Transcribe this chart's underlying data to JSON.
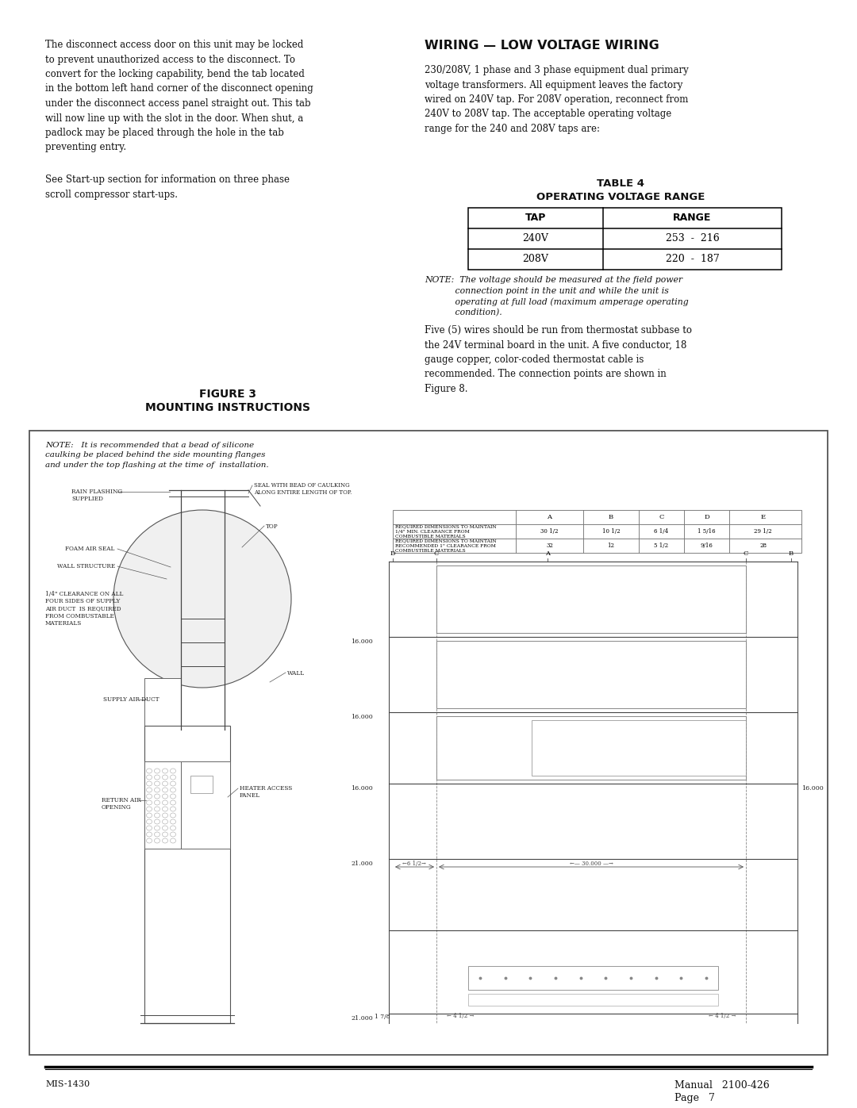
{
  "page_bg": "#ffffff",
  "title_wiring": "WIRING — LOW VOLTAGE WIRING",
  "left_para1": "The disconnect access door on this unit may be locked\nto prevent unauthorized access to the disconnect. To\nconvert for the locking capability, bend the tab located\nin the bottom left hand corner of the disconnect opening\nunder the disconnect access panel straight out. This tab\nwill now line up with the slot in the door. When shut, a\npadlock may be placed through the hole in the tab\npreventing entry.",
  "left_para2": "See Start-up section for information on three phase\nscroll compressor start-ups.",
  "right_para1": "230/208V, 1 phase and 3 phase equipment dual primary\nvoltage transformers. All equipment leaves the factory\nwired on 240V tap. For 208V operation, reconnect from\n240V to 208V tap. The acceptable operating voltage\nrange for the 240 and 208V taps are:",
  "table_title1": "TABLE 4",
  "table_title2": "OPERATING VOLTAGE RANGE",
  "table_headers": [
    "TAP",
    "RANGE"
  ],
  "table_rows": [
    [
      "240V",
      "253  -  216"
    ],
    [
      "208V",
      "220  -  187"
    ]
  ],
  "note_text1": "NOTE:  The voltage should be measured at the field power",
  "note_text2": "           connection point in the unit and while the unit is",
  "note_text3": "           operating at full load (maximum amperage operating",
  "note_text4": "           condition).",
  "right_para2": "Five (5) wires should be run from thermostat subbase to\nthe 24V terminal board in the unit. A five conductor, 18\ngauge copper, color-coded thermostat cable is\nrecommended. The connection points are shown in\nFigure 8.",
  "fig_title1": "FIGURE 3",
  "fig_title2": "MOUNTING INSTRUCTIONS",
  "footer_left": "MIS-1430",
  "footer_right1": "Manual   2100-426",
  "footer_right2": "Page   7"
}
